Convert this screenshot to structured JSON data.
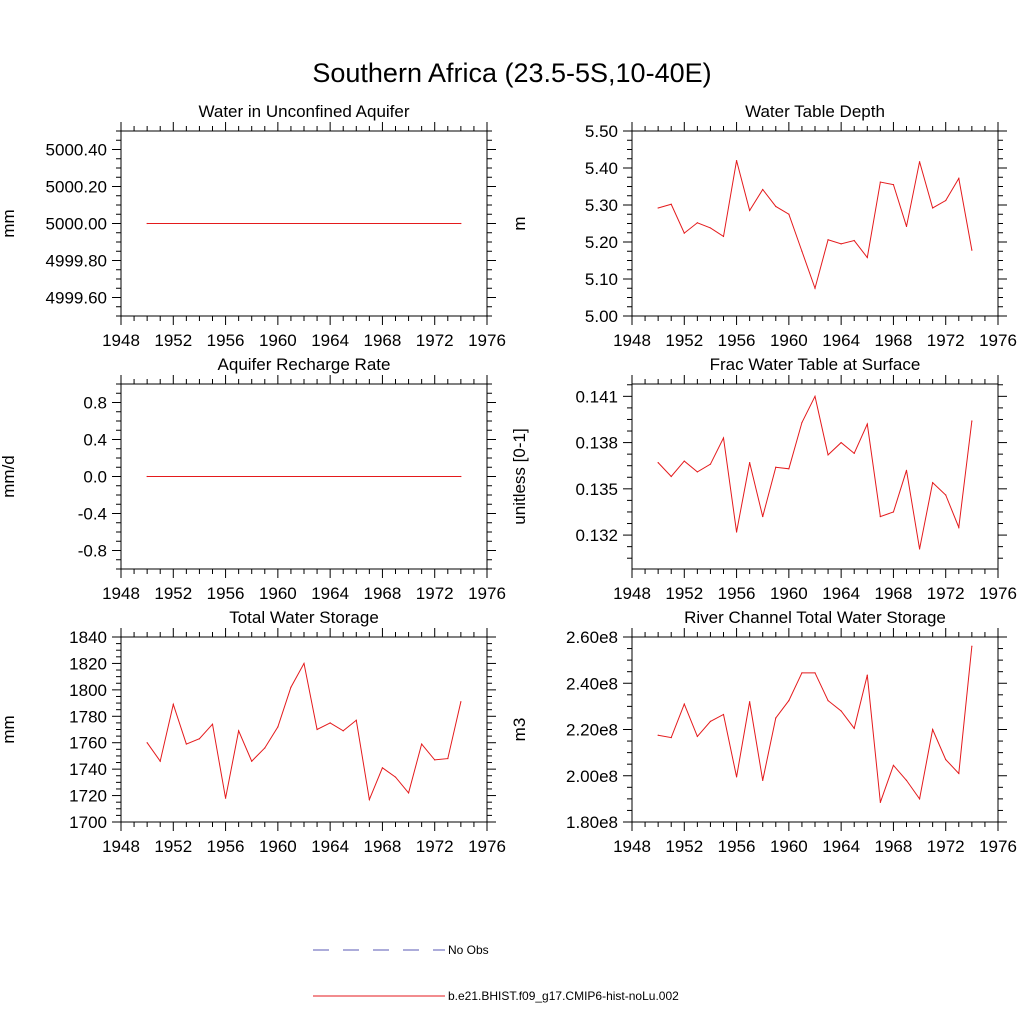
{
  "figure": {
    "title": "Southern Africa (23.5-5S,10-40E)"
  },
  "legend": {
    "placement": "bottom-center",
    "entries": [
      {
        "label": "No Obs",
        "color": "#5a5ab4",
        "style": "dashed"
      },
      {
        "label": "b.e21.BHIST.f09_g17.CMIP6-hist-noLu.002",
        "color": "#e41a1c",
        "style": "solid"
      }
    ]
  },
  "chart_data": [
    {
      "type": "line",
      "title": "Water in Unconfined Aquifer",
      "xlabel": "",
      "ylabel": "mm",
      "xlim": [
        1948,
        1976
      ],
      "xticks": [
        1948,
        1952,
        1956,
        1960,
        1964,
        1968,
        1972,
        1976
      ],
      "ylim": [
        4999.5,
        5000.5
      ],
      "yticks": [
        4999.6,
        4999.8,
        5000.0,
        5000.2,
        5000.4
      ],
      "ytick_labels": [
        "4999.60",
        "4999.80",
        "5000.00",
        "5000.20",
        "5000.40"
      ],
      "series": [
        {
          "color": "#e41a1c",
          "x": [
            1950,
            1974
          ],
          "values": [
            5000.0,
            5000.0
          ]
        }
      ]
    },
    {
      "type": "line",
      "title": "Water Table Depth",
      "xlabel": "",
      "ylabel": "m",
      "xlim": [
        1948,
        1976
      ],
      "xticks": [
        1948,
        1952,
        1956,
        1960,
        1964,
        1968,
        1972,
        1976
      ],
      "ylim": [
        5.0,
        5.5
      ],
      "yticks": [
        5.0,
        5.1,
        5.2,
        5.3,
        5.4,
        5.5
      ],
      "ytick_labels": [
        "5.00",
        "5.10",
        "5.20",
        "5.30",
        "5.40",
        "5.50"
      ],
      "series": [
        {
          "color": "#e41a1c",
          "x": [
            1950,
            1951,
            1952,
            1953,
            1954,
            1955,
            1956,
            1957,
            1958,
            1959,
            1960,
            1961,
            1962,
            1963,
            1964,
            1965,
            1966,
            1967,
            1968,
            1969,
            1970,
            1971,
            1972,
            1973,
            1974
          ],
          "values": [
            5.292,
            5.302,
            5.224,
            5.252,
            5.238,
            5.215,
            5.42,
            5.285,
            5.342,
            5.296,
            5.275,
            5.175,
            5.075,
            5.206,
            5.195,
            5.204,
            5.158,
            5.362,
            5.355,
            5.242,
            5.417,
            5.292,
            5.312,
            5.372,
            5.178
          ]
        }
      ]
    },
    {
      "type": "line",
      "title": "Aquifer Recharge Rate",
      "xlabel": "",
      "ylabel": "mm/d",
      "xlim": [
        1948,
        1976
      ],
      "xticks": [
        1948,
        1952,
        1956,
        1960,
        1964,
        1968,
        1972,
        1976
      ],
      "ylim": [
        -1.0,
        1.0
      ],
      "yticks": [
        -0.8,
        -0.4,
        0.0,
        0.4,
        0.8
      ],
      "ytick_labels": [
        "-0.8",
        "-0.4",
        "0.0",
        "0.4",
        "0.8"
      ],
      "series": [
        {
          "color": "#e41a1c",
          "x": [
            1950,
            1974
          ],
          "values": [
            0.0,
            0.0
          ]
        }
      ]
    },
    {
      "type": "line",
      "title": "Frac Water Table at Surface",
      "xlabel": "",
      "ylabel": "unitless [0-1]",
      "xlim": [
        1948,
        1976
      ],
      "xticks": [
        1948,
        1952,
        1956,
        1960,
        1964,
        1968,
        1972,
        1976
      ],
      "ylim": [
        0.1298,
        0.1418
      ],
      "yticks": [
        0.132,
        0.135,
        0.138,
        0.141
      ],
      "ytick_labels": [
        "0.132",
        "0.135",
        "0.138",
        "0.141"
      ],
      "series": [
        {
          "color": "#e41a1c",
          "x": [
            1950,
            1951,
            1952,
            1953,
            1954,
            1955,
            1956,
            1957,
            1958,
            1959,
            1960,
            1961,
            1962,
            1963,
            1964,
            1965,
            1966,
            1967,
            1968,
            1969,
            1970,
            1971,
            1972,
            1973,
            1974
          ],
          "values": [
            0.1367,
            0.1358,
            0.1368,
            0.1361,
            0.1366,
            0.1383,
            0.1322,
            0.1367,
            0.1332,
            0.1364,
            0.1363,
            0.1393,
            0.141,
            0.1372,
            0.138,
            0.1373,
            0.1392,
            0.1332,
            0.1335,
            0.1362,
            0.1311,
            0.1354,
            0.1346,
            0.1325,
            0.1394
          ]
        }
      ]
    },
    {
      "type": "line",
      "title": "Total Water Storage",
      "xlabel": "",
      "ylabel": "mm",
      "xlim": [
        1948,
        1976
      ],
      "xticks": [
        1948,
        1952,
        1956,
        1960,
        1964,
        1968,
        1972,
        1976
      ],
      "ylim": [
        1700,
        1840
      ],
      "yticks": [
        1700,
        1720,
        1740,
        1760,
        1780,
        1800,
        1820,
        1840
      ],
      "ytick_labels": [
        "1700",
        "1720",
        "1740",
        "1760",
        "1780",
        "1800",
        "1820",
        "1840"
      ],
      "series": [
        {
          "color": "#e41a1c",
          "x": [
            1950,
            1951,
            1952,
            1953,
            1954,
            1955,
            1956,
            1957,
            1958,
            1959,
            1960,
            1961,
            1962,
            1963,
            1964,
            1965,
            1966,
            1967,
            1968,
            1969,
            1970,
            1971,
            1972,
            1973,
            1974
          ],
          "values": [
            1760,
            1746,
            1789,
            1759,
            1763,
            1774,
            1718,
            1769,
            1746,
            1756,
            1772,
            1802,
            1820,
            1770,
            1775,
            1769,
            1777,
            1717,
            1741,
            1734,
            1722,
            1759,
            1747,
            1748,
            1791
          ]
        }
      ]
    },
    {
      "type": "line",
      "title": "River Channel Total Water Storage",
      "xlabel": "",
      "ylabel": "m3",
      "xlim": [
        1948,
        1976
      ],
      "xticks": [
        1948,
        1952,
        1956,
        1960,
        1964,
        1968,
        1972,
        1976
      ],
      "ylim": [
        180000000,
        260000000
      ],
      "yticks": [
        180000000,
        200000000,
        220000000,
        240000000,
        260000000
      ],
      "ytick_labels": [
        "1.80e8",
        "2.00e8",
        "2.20e8",
        "2.40e8",
        "2.60e8"
      ],
      "series": [
        {
          "color": "#e41a1c",
          "x": [
            1950,
            1951,
            1952,
            1953,
            1954,
            1955,
            1956,
            1957,
            1958,
            1959,
            1960,
            1961,
            1962,
            1963,
            1964,
            1965,
            1966,
            1967,
            1968,
            1969,
            1970,
            1971,
            1972,
            1973,
            1974
          ],
          "values": [
            217500000,
            216500000,
            231000000,
            217000000,
            223500000,
            226500000,
            199500000,
            232000000,
            198000000,
            225000000,
            232500000,
            244500000,
            244500000,
            232500000,
            228000000,
            220500000,
            243500000,
            188500000,
            204500000,
            198000000,
            190000000,
            220000000,
            207000000,
            201000000,
            256000000
          ]
        }
      ]
    }
  ]
}
